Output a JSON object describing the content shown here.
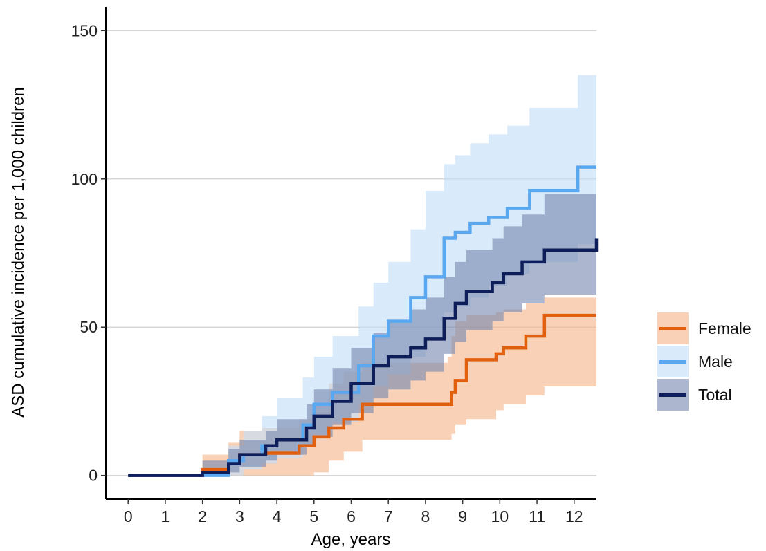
{
  "chart_data": {
    "type": "line",
    "subtype": "cumulative incidence step curves with confidence bands",
    "title": "",
    "xlabel": "Age, years",
    "ylabel": "ASD cumulative incidence per 1,000 children",
    "xlim": [
      -0.6,
      12.6
    ],
    "ylim": [
      -8,
      158
    ],
    "xticks": [
      0,
      1,
      2,
      3,
      4,
      5,
      6,
      7,
      8,
      9,
      10,
      11,
      12
    ],
    "yticks": [
      0,
      50,
      100,
      150
    ],
    "grid": "horizontal major lines",
    "legend_position": "right",
    "series": [
      {
        "name": "Female",
        "color": "#E06010",
        "band_color": "#F4B890",
        "x": [
          0,
          2.0,
          2.7,
          3.0,
          3.6,
          4.6,
          5.0,
          5.4,
          5.8,
          6.3,
          8.6,
          8.7,
          8.8,
          9.1,
          9.9,
          10.1,
          10.7,
          11.2,
          12.6
        ],
        "y": [
          0,
          2,
          5,
          7,
          7.5,
          10,
          13,
          16,
          19,
          24,
          24,
          28,
          32,
          39,
          41,
          43,
          47,
          54,
          54
        ],
        "lower": [
          0,
          0,
          0,
          0,
          0,
          0,
          1,
          5,
          8,
          12,
          12,
          14,
          17,
          19,
          22,
          24,
          27,
          30,
          31
        ],
        "upper": [
          0,
          7,
          11,
          15,
          16,
          19,
          24,
          31,
          35,
          38,
          40,
          47,
          52,
          54,
          55,
          56,
          58,
          60,
          60
        ]
      },
      {
        "name": "Male",
        "color": "#5AA8F0",
        "band_color": "#C5DEF8",
        "x": [
          0,
          2.7,
          3.1,
          3.6,
          4.0,
          4.7,
          5.0,
          5.5,
          6.2,
          6.6,
          7.0,
          7.6,
          8.0,
          8.5,
          8.8,
          9.2,
          9.7,
          10.2,
          10.8,
          12.1,
          12.6
        ],
        "y": [
          0,
          5,
          7,
          10,
          12,
          17,
          24,
          28,
          37,
          47,
          52,
          60,
          67,
          80,
          82,
          85,
          87,
          90,
          96,
          104,
          104
        ],
        "lower": [
          0,
          0,
          2,
          4,
          6,
          10,
          14,
          18,
          24,
          30,
          34,
          40,
          46,
          55,
          57,
          60,
          64,
          68,
          72,
          78,
          78
        ],
        "upper": [
          0,
          10,
          15,
          20,
          26,
          33,
          40,
          47,
          57,
          65,
          72,
          83,
          96,
          105,
          108,
          112,
          115,
          118,
          124,
          135,
          135
        ]
      },
      {
        "name": "Total",
        "color": "#0E1E5A",
        "band_color": "#7585AE",
        "x": [
          0,
          2.0,
          2.7,
          3.0,
          3.7,
          4.0,
          4.8,
          5.0,
          5.5,
          6.0,
          6.6,
          7.0,
          7.6,
          8.0,
          8.5,
          8.8,
          9.1,
          9.8,
          10.1,
          10.6,
          11.2,
          12.6
        ],
        "y": [
          0,
          1,
          4,
          7,
          10,
          12,
          16,
          20,
          25,
          31,
          37,
          40,
          43,
          46,
          53,
          58,
          62,
          65,
          68,
          72,
          76,
          80
        ],
        "lower": [
          0,
          0,
          1,
          3,
          5,
          7,
          10,
          13,
          17,
          21,
          26,
          29,
          32,
          35,
          41,
          45,
          49,
          52,
          55,
          58,
          61,
          62
        ],
        "upper": [
          0,
          5,
          9,
          12,
          15,
          19,
          24,
          29,
          36,
          43,
          48,
          52,
          56,
          60,
          67,
          72,
          76,
          80,
          84,
          88,
          95,
          99
        ]
      }
    ]
  }
}
